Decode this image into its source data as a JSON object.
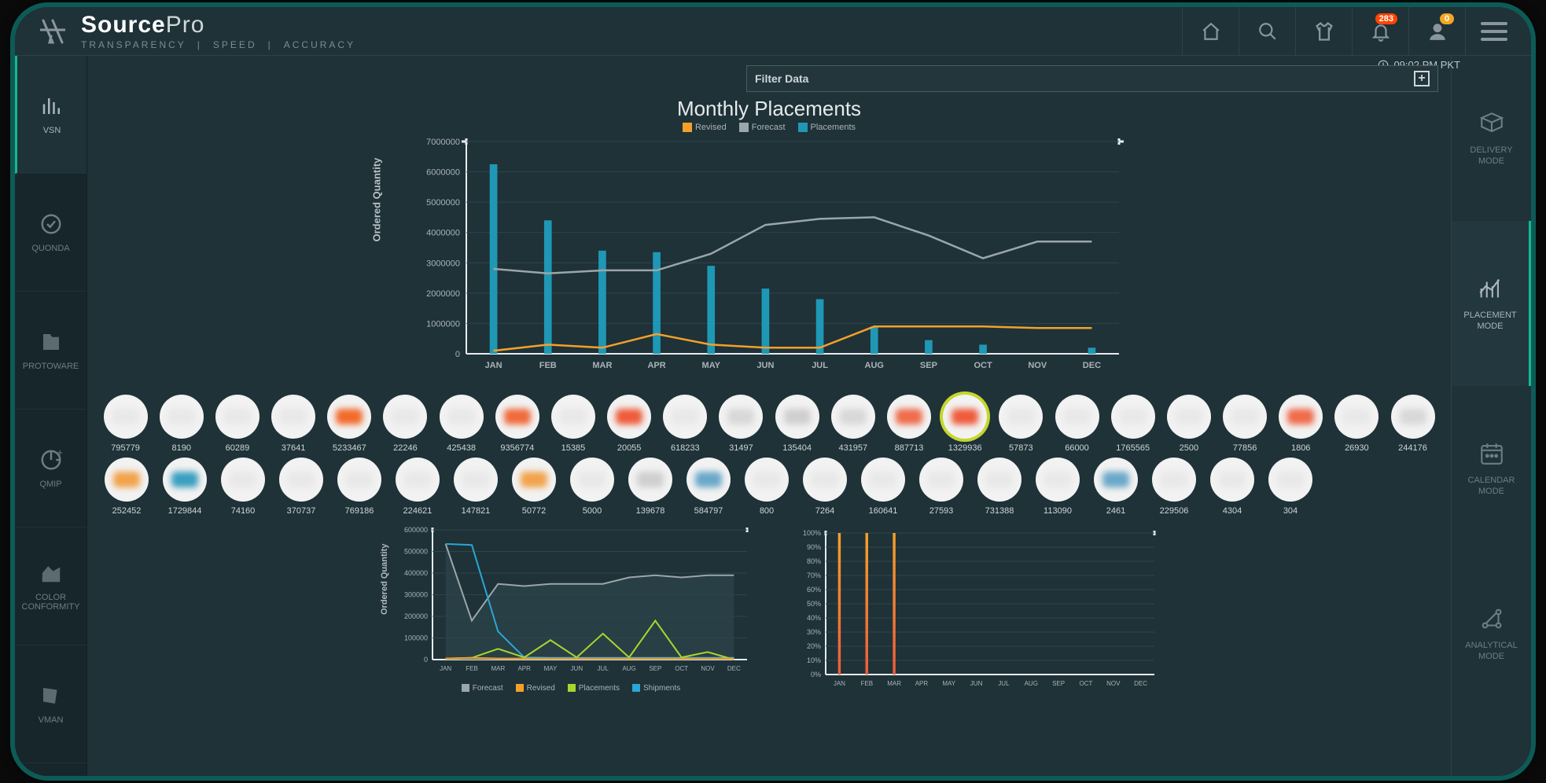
{
  "brand": {
    "bold": "Source",
    "light": "Pro",
    "sub1": "TRANSPARENCY",
    "sub2": "SPEED",
    "sub3": "ACCURACY"
  },
  "header": {
    "bell_badge": "283",
    "user_badge": "0",
    "clock": "09:02 PM PKT"
  },
  "left_rail": [
    {
      "label": "VSN"
    },
    {
      "label": "QUONDA"
    },
    {
      "label": "PROTOWARE"
    },
    {
      "label": "QMIP"
    },
    {
      "label": "COLOR CONFORMITY"
    },
    {
      "label": "VMAN"
    }
  ],
  "right_rail": [
    {
      "label": "DELIVERY MODE"
    },
    {
      "label": "PLACEMENT MODE"
    },
    {
      "label": "CALENDAR MODE"
    },
    {
      "label": "ANALYTICAL MODE"
    }
  ],
  "filter": {
    "label": "Filter Data"
  },
  "main_chart": {
    "title": "Monthly Placements",
    "y_axis_label": "Ordered Quantity",
    "type": "bar+line",
    "categories": [
      "JAN",
      "FEB",
      "MAR",
      "APR",
      "MAY",
      "JUN",
      "JUL",
      "AUG",
      "SEP",
      "OCT",
      "NOV",
      "DEC"
    ],
    "ylim": [
      0,
      7000000
    ],
    "ytick_step": 1000000,
    "ytick_labels": [
      "0",
      "1000000",
      "2000000",
      "3000000",
      "4000000",
      "5000000",
      "6000000",
      "7000000"
    ],
    "grid_color": "#2e454c",
    "axis_color": "#e8ecee",
    "legend": [
      {
        "label": "Revised",
        "color": "#f5a02a",
        "type": "line"
      },
      {
        "label": "Forecast",
        "color": "#9aa6ab",
        "type": "line"
      },
      {
        "label": "Placements",
        "color": "#1f98b5",
        "type": "bar"
      }
    ],
    "bars": {
      "color": "#1f98b5",
      "values": [
        6250000,
        4400000,
        3400000,
        3350000,
        2900000,
        2150000,
        1800000,
        900000,
        450000,
        300000,
        0,
        200000
      ],
      "width": 0.14
    },
    "forecast": {
      "color": "#9aa6ab",
      "values": [
        2800000,
        2650000,
        2750000,
        2750000,
        3300000,
        4250000,
        4450000,
        4500000,
        3900000,
        3150000,
        3700000,
        3700000
      ]
    },
    "revised": {
      "color": "#f5a02a",
      "values": [
        100000,
        300000,
        200000,
        650000,
        300000,
        200000,
        200000,
        900000,
        900000,
        900000,
        850000,
        850000
      ]
    },
    "label_fontsize": 11,
    "background_color": "#1e3238"
  },
  "bubbles": {
    "highlight_index": 16,
    "row1": [
      {
        "v": "795779",
        "c": "#e8e8e8"
      },
      {
        "v": "8190",
        "c": "#e8e8e8"
      },
      {
        "v": "60289",
        "c": "#e8e8e8"
      },
      {
        "v": "37641",
        "c": "#e8e8e8"
      },
      {
        "v": "5233467",
        "c": "#f26a2a"
      },
      {
        "v": "22246",
        "c": "#e8e8e8"
      },
      {
        "v": "425438",
        "c": "#e8e8e8"
      },
      {
        "v": "9356774",
        "c": "#f06a3a"
      },
      {
        "v": "15385",
        "c": "#e8e8e8"
      },
      {
        "v": "20055",
        "c": "#ef5b3a"
      },
      {
        "v": "618233",
        "c": "#e8e8e8"
      },
      {
        "v": "31497",
        "c": "#d8d8d8"
      },
      {
        "v": "135404",
        "c": "#cfcfcf"
      },
      {
        "v": "431957",
        "c": "#d8d8d8"
      },
      {
        "v": "887713",
        "c": "#ef6b4a"
      },
      {
        "v": "1329936",
        "c": "#ef5b3a"
      },
      {
        "v": "57873",
        "c": "#e8e8e8"
      },
      {
        "v": "66000",
        "c": "#e8e8e8"
      },
      {
        "v": "1765565",
        "c": "#e8e8e8"
      },
      {
        "v": "2500",
        "c": "#e8e8e8"
      },
      {
        "v": "77856",
        "c": "#e8e8e8"
      },
      {
        "v": "1806",
        "c": "#ef6b4a"
      },
      {
        "v": "26930",
        "c": "#e8e8e8"
      },
      {
        "v": "244176",
        "c": "#d8d8d8"
      }
    ],
    "row2": [
      {
        "v": "252452",
        "c": "#f2a24a"
      },
      {
        "v": "1729844",
        "c": "#3a9ebf"
      },
      {
        "v": "74160",
        "c": "#e8e8e8"
      },
      {
        "v": "370737",
        "c": "#e8e8e8"
      },
      {
        "v": "769186",
        "c": "#e8e8e8"
      },
      {
        "v": "224621",
        "c": "#e8e8e8"
      },
      {
        "v": "147821",
        "c": "#e8e8e8"
      },
      {
        "v": "50772",
        "c": "#f2a24a"
      },
      {
        "v": "5000",
        "c": "#e8e8e8"
      },
      {
        "v": "139678",
        "c": "#cfcfcf"
      },
      {
        "v": "584797",
        "c": "#6aa8c8"
      },
      {
        "v": "800",
        "c": "#e8e8e8"
      },
      {
        "v": "7264",
        "c": "#e8e8e8"
      },
      {
        "v": "160641",
        "c": "#e8e8e8"
      },
      {
        "v": "27593",
        "c": "#e8e8e8"
      },
      {
        "v": "731388",
        "c": "#e8e8e8"
      },
      {
        "v": "113090",
        "c": "#e8e8e8"
      },
      {
        "v": "2461",
        "c": "#6aa8c8"
      },
      {
        "v": "229506",
        "c": "#e8e8e8"
      },
      {
        "v": "4304",
        "c": "#e8e8e8"
      },
      {
        "v": "304",
        "c": "#e8e8e8"
      }
    ]
  },
  "bottom_left_chart": {
    "y_axis_label": "Ordered Quantity",
    "categories": [
      "JAN",
      "FEB",
      "MAR",
      "APR",
      "MAY",
      "JUN",
      "JUL",
      "AUG",
      "SEP",
      "OCT",
      "NOV",
      "DEC"
    ],
    "ylim": [
      0,
      600000
    ],
    "ytick_step": 100000,
    "ytick_labels": [
      "0",
      "100000",
      "200000",
      "300000",
      "400000",
      "500000",
      "600000"
    ],
    "legend": [
      {
        "label": "Forecast",
        "color": "#9aa6ab"
      },
      {
        "label": "Revised",
        "color": "#f5a02a"
      },
      {
        "label": "Placements",
        "color": "#a6d62e"
      },
      {
        "label": "Shipments",
        "color": "#2aa6d6"
      }
    ],
    "forecast": {
      "color": "#9aa6ab",
      "fill": "#2b4249",
      "values": [
        535000,
        180000,
        350000,
        340000,
        350000,
        350000,
        350000,
        380000,
        390000,
        380000,
        390000,
        390000
      ]
    },
    "revised": {
      "color": "#f5a02a",
      "values": [
        5000,
        8000,
        5000,
        5000,
        5000,
        5000,
        5000,
        5000,
        5000,
        5000,
        5000,
        5000
      ]
    },
    "placements": {
      "color": "#a6d62e",
      "values": [
        5000,
        8000,
        50000,
        10000,
        90000,
        10000,
        120000,
        10000,
        180000,
        10000,
        35000,
        0
      ]
    },
    "shipments": {
      "color": "#2aa6d6",
      "values": [
        535000,
        530000,
        130000,
        10000,
        8000,
        8000,
        8000,
        8000,
        8000,
        8000,
        8000,
        8000
      ]
    }
  },
  "bottom_right_chart": {
    "categories": [
      "JAN",
      "FEB",
      "MAR",
      "APR",
      "MAY",
      "JUN",
      "JUL",
      "AUG",
      "SEP",
      "OCT",
      "NOV",
      "DEC"
    ],
    "ylim": [
      0,
      100
    ],
    "ytick_step": 10,
    "ytick_labels": [
      "0%",
      "10%",
      "20%",
      "30%",
      "40%",
      "50%",
      "60%",
      "70%",
      "80%",
      "90%",
      "100%"
    ],
    "bars": {
      "color": "#f5a02a",
      "color2": "#ef5b3a",
      "values": [
        100,
        100,
        100,
        0,
        0,
        0,
        0,
        0,
        0,
        0,
        0,
        0
      ],
      "width": 0.1
    }
  }
}
